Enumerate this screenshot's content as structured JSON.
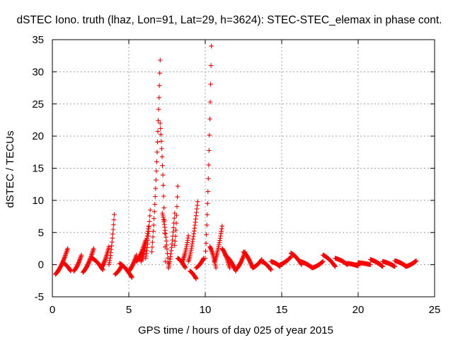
{
  "chart_data": {
    "type": "scatter",
    "title": "dSTEC Iono. truth (lhaz, Lon=91, Lat=29, h=3624): STEC-STEC_elemax in phase cont.",
    "xlabel": "GPS time / hours of day 025 of year 2015",
    "ylabel": "dSTEC  / TECUs",
    "xlim": [
      0,
      25
    ],
    "ylim": [
      -5,
      35
    ],
    "xticks": [
      "0",
      "5",
      "10",
      "15",
      "20",
      "25"
    ],
    "yticks": [
      "-5",
      "0",
      "5",
      "10",
      "15",
      "20",
      "25",
      "30",
      "35"
    ],
    "grid": true,
    "marker": "plus",
    "color": "#ff0000",
    "arcs": [
      {
        "t0": 0.2,
        "t1": 1.0,
        "v0": -1.5,
        "v1": 2.5
      },
      {
        "t0": 0.7,
        "t1": 1.2,
        "v0": 0.3,
        "v1": -1.0
      },
      {
        "t0": 1.4,
        "t1": 1.9,
        "v0": -1.0,
        "v1": 1.5
      },
      {
        "t0": 2.0,
        "t1": 2.7,
        "v0": -1.2,
        "v1": 2.5
      },
      {
        "t0": 2.6,
        "t1": 3.3,
        "v0": 1.0,
        "v1": -0.8
      },
      {
        "t0": 3.2,
        "t1": 3.7,
        "v0": -0.5,
        "v1": 2.8
      },
      {
        "t0": 3.7,
        "t1": 4.05,
        "v0": 0.0,
        "v1": 7.8
      },
      {
        "t0": 4.1,
        "t1": 4.5,
        "v0": -1.5,
        "v1": -0.3
      },
      {
        "t0": 4.4,
        "t1": 5.2,
        "v0": 0.2,
        "v1": -2.0
      },
      {
        "t0": 5.0,
        "t1": 5.5,
        "v0": -1.0,
        "v1": 1.5
      },
      {
        "t0": 5.5,
        "t1": 6.1,
        "v0": 0.5,
        "v1": 3.8
      },
      {
        "t0": 5.8,
        "t1": 6.3,
        "v0": 0.5,
        "v1": 6.0
      },
      {
        "t0": 6.1,
        "t1": 6.4,
        "v0": 1.0,
        "v1": 8.5
      },
      {
        "t0": 6.5,
        "t1": 7.05,
        "v0": 2.0,
        "v1": 31.8
      },
      {
        "t0": 7.05,
        "t1": 7.4,
        "v0": 22.0,
        "v1": 0.5
      },
      {
        "t0": 7.2,
        "t1": 7.6,
        "v0": 8.0,
        "v1": -0.5
      },
      {
        "t0": 7.6,
        "t1": 8.0,
        "v0": -0.5,
        "v1": 8.0
      },
      {
        "t0": 8.0,
        "t1": 8.2,
        "v0": 3.0,
        "v1": 12.2
      },
      {
        "t0": 8.2,
        "t1": 8.7,
        "v0": 1.0,
        "v1": -0.5
      },
      {
        "t0": 8.5,
        "t1": 8.9,
        "v0": 0.5,
        "v1": 4.5
      },
      {
        "t0": 8.9,
        "t1": 9.5,
        "v0": 0.5,
        "v1": 9.8
      },
      {
        "t0": 9.0,
        "t1": 9.4,
        "v0": -1.0,
        "v1": -2.2
      },
      {
        "t0": 9.4,
        "t1": 9.9,
        "v0": -0.5,
        "v1": 1.0
      },
      {
        "t0": 10.0,
        "t1": 10.4,
        "v0": 1.0,
        "v1": 34.0
      },
      {
        "t0": 10.3,
        "t1": 10.7,
        "v0": 2.8,
        "v1": -0.5
      },
      {
        "t0": 10.6,
        "t1": 11.1,
        "v0": 0.5,
        "v1": 6.0
      },
      {
        "t0": 11.1,
        "t1": 11.6,
        "v0": 2.5,
        "v1": -0.5
      },
      {
        "t0": 11.3,
        "t1": 12.0,
        "v0": 1.5,
        "v1": -1.0
      },
      {
        "t0": 12.0,
        "t1": 12.6,
        "v0": -0.8,
        "v1": 2.0
      },
      {
        "t0": 12.5,
        "t1": 13.1,
        "v0": 2.0,
        "v1": -0.5
      },
      {
        "t0": 13.1,
        "t1": 13.7,
        "v0": -0.5,
        "v1": 0.8
      },
      {
        "t0": 13.7,
        "t1": 14.3,
        "v0": 0.5,
        "v1": -0.8
      },
      {
        "t0": 14.3,
        "t1": 14.9,
        "v0": 0.5,
        "v1": -0.3
      },
      {
        "t0": 14.9,
        "t1": 15.6,
        "v0": 0.0,
        "v1": 1.2
      },
      {
        "t0": 15.6,
        "t1": 16.3,
        "v0": 1.8,
        "v1": 0.0
      },
      {
        "t0": 16.2,
        "t1": 17.0,
        "v0": 0.5,
        "v1": -0.5
      },
      {
        "t0": 17.0,
        "t1": 17.7,
        "v0": -0.5,
        "v1": 0.5
      },
      {
        "t0": 17.7,
        "t1": 18.5,
        "v0": 1.5,
        "v1": -0.3
      },
      {
        "t0": 18.5,
        "t1": 19.3,
        "v0": 1.0,
        "v1": 0.0
      },
      {
        "t0": 19.3,
        "t1": 20.0,
        "v0": 0.2,
        "v1": -0.2
      },
      {
        "t0": 20.0,
        "t1": 20.8,
        "v0": 0.3,
        "v1": 0.0
      },
      {
        "t0": 20.8,
        "t1": 21.6,
        "v0": 0.8,
        "v1": -0.3
      },
      {
        "t0": 21.6,
        "t1": 22.4,
        "v0": 0.5,
        "v1": -0.3
      },
      {
        "t0": 22.4,
        "t1": 23.1,
        "v0": 0.6,
        "v1": -0.2
      },
      {
        "t0": 23.1,
        "t1": 23.8,
        "v0": -0.3,
        "v1": 0.6
      }
    ]
  }
}
